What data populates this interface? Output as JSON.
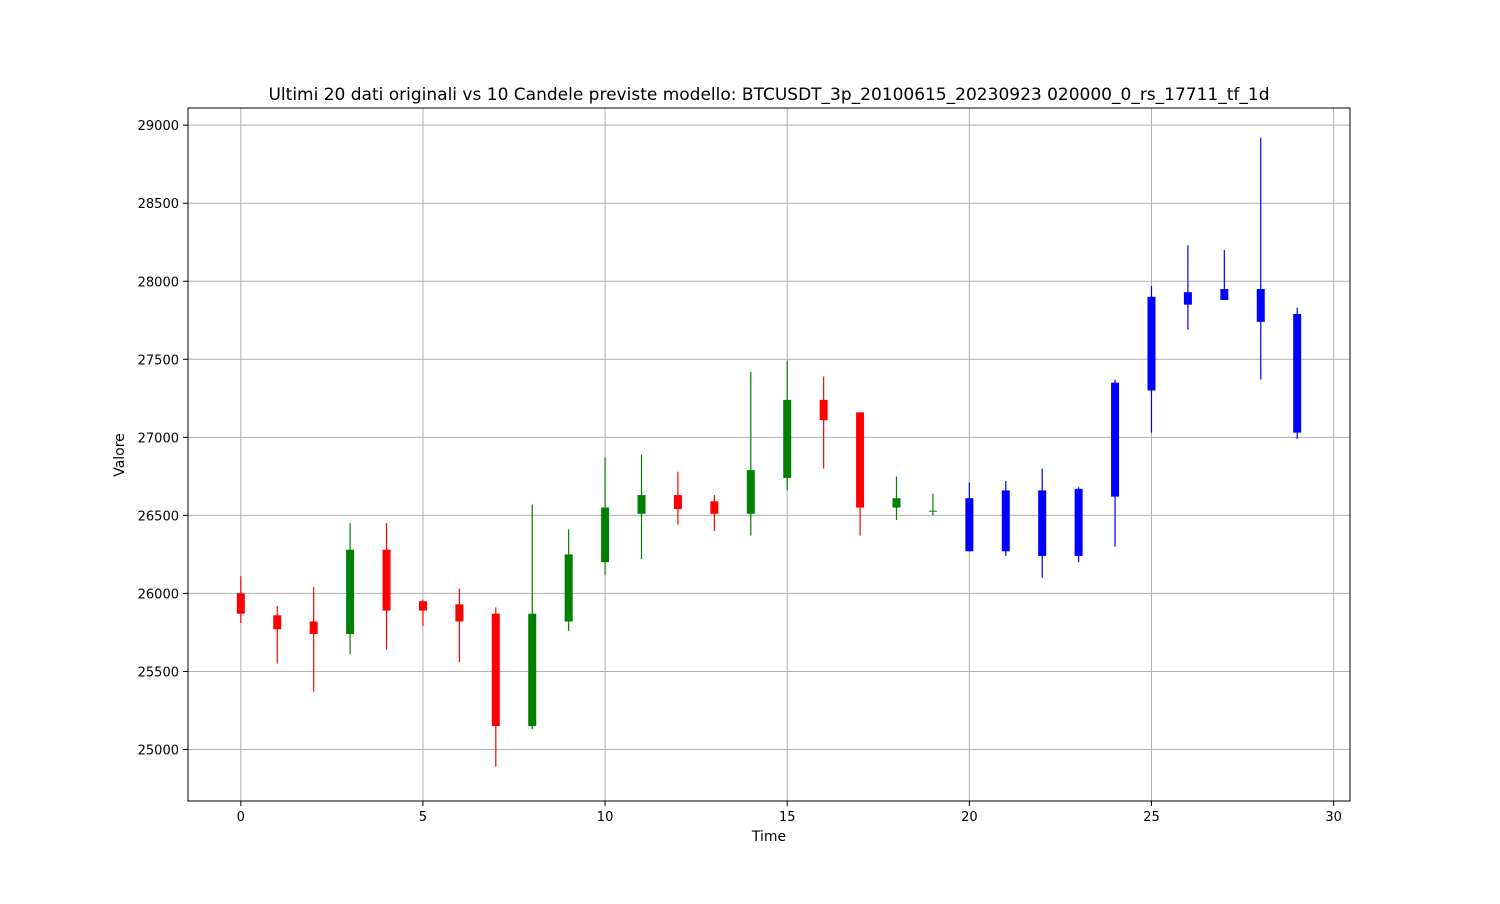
{
  "chart_data": {
    "type": "candlestick",
    "title": "Ultimi 20 dati originali vs 10 Candele previste modello: BTCUSDT_3p_20100615_20230923 020000_0_rs_17711_tf_1d",
    "xlabel": "Time",
    "ylabel": "Valore",
    "xlim": [
      -1.45,
      30.45
    ],
    "ylim": [
      24670,
      29110
    ],
    "xticks": [
      0,
      5,
      10,
      15,
      20,
      25,
      30
    ],
    "yticks": [
      25000,
      25500,
      26000,
      26500,
      27000,
      27500,
      28000,
      28500,
      29000
    ],
    "grid": true,
    "colors": {
      "up": "#008000",
      "down": "#ff0000",
      "predicted": "#0000ff"
    },
    "series": [
      {
        "candles": [
          {
            "x": 0,
            "open": 26000,
            "high": 26110,
            "low": 25810,
            "close": 25870
          },
          {
            "x": 1,
            "open": 25860,
            "high": 25920,
            "low": 25550,
            "close": 25770
          },
          {
            "x": 2,
            "open": 25820,
            "high": 26040,
            "low": 25370,
            "close": 25740
          },
          {
            "x": 3,
            "open": 25740,
            "high": 26450,
            "low": 25610,
            "close": 26280
          },
          {
            "x": 4,
            "open": 26280,
            "high": 26450,
            "low": 25640,
            "close": 25890
          },
          {
            "x": 5,
            "open": 25950,
            "high": 25960,
            "low": 25790,
            "close": 25890
          },
          {
            "x": 6,
            "open": 25930,
            "high": 26030,
            "low": 25560,
            "close": 25820
          },
          {
            "x": 7,
            "open": 25870,
            "high": 25910,
            "low": 24890,
            "close": 25150
          },
          {
            "x": 8,
            "open": 25150,
            "high": 26570,
            "low": 25130,
            "close": 25870
          },
          {
            "x": 9,
            "open": 25820,
            "high": 26410,
            "low": 25760,
            "close": 26250
          },
          {
            "x": 10,
            "open": 26200,
            "high": 26870,
            "low": 26120,
            "close": 26550
          },
          {
            "x": 11,
            "open": 26510,
            "high": 26890,
            "low": 26220,
            "close": 26630
          },
          {
            "x": 12,
            "open": 26630,
            "high": 26780,
            "low": 26440,
            "close": 26540
          },
          {
            "x": 13,
            "open": 26590,
            "high": 26630,
            "low": 26400,
            "close": 26510
          },
          {
            "x": 14,
            "open": 26510,
            "high": 27420,
            "low": 26370,
            "close": 26790
          },
          {
            "x": 15,
            "open": 26740,
            "high": 27490,
            "low": 26660,
            "close": 27240
          },
          {
            "x": 16,
            "open": 27240,
            "high": 27390,
            "low": 26800,
            "close": 27110
          },
          {
            "x": 17,
            "open": 27160,
            "high": 27160,
            "low": 26370,
            "close": 26550
          },
          {
            "x": 18,
            "open": 26550,
            "high": 26750,
            "low": 26470,
            "close": 26610
          },
          {
            "x": 19,
            "open": 26530,
            "high": 26640,
            "low": 26500,
            "close": 26530
          }
        ]
      },
      {
        "candles": [
          {
            "x": 20,
            "open": 26270,
            "high": 26710,
            "low": 26270,
            "close": 26610
          },
          {
            "x": 21,
            "open": 26270,
            "high": 26720,
            "low": 26240,
            "close": 26660
          },
          {
            "x": 22,
            "open": 26240,
            "high": 26800,
            "low": 26100,
            "close": 26660
          },
          {
            "x": 23,
            "open": 26240,
            "high": 26680,
            "low": 26200,
            "close": 26670
          },
          {
            "x": 24,
            "open": 26620,
            "high": 27370,
            "low": 26300,
            "close": 27350
          },
          {
            "x": 25,
            "open": 27300,
            "high": 27970,
            "low": 27030,
            "close": 27900
          },
          {
            "x": 26,
            "open": 27850,
            "high": 28230,
            "low": 27690,
            "close": 27930
          },
          {
            "x": 27,
            "open": 27880,
            "high": 28200,
            "low": 27880,
            "close": 27950
          },
          {
            "x": 28,
            "open": 27740,
            "high": 28920,
            "low": 27370,
            "close": 27950
          },
          {
            "x": 29,
            "open": 27030,
            "high": 27830,
            "low": 26990,
            "close": 27790
          }
        ]
      }
    ]
  }
}
